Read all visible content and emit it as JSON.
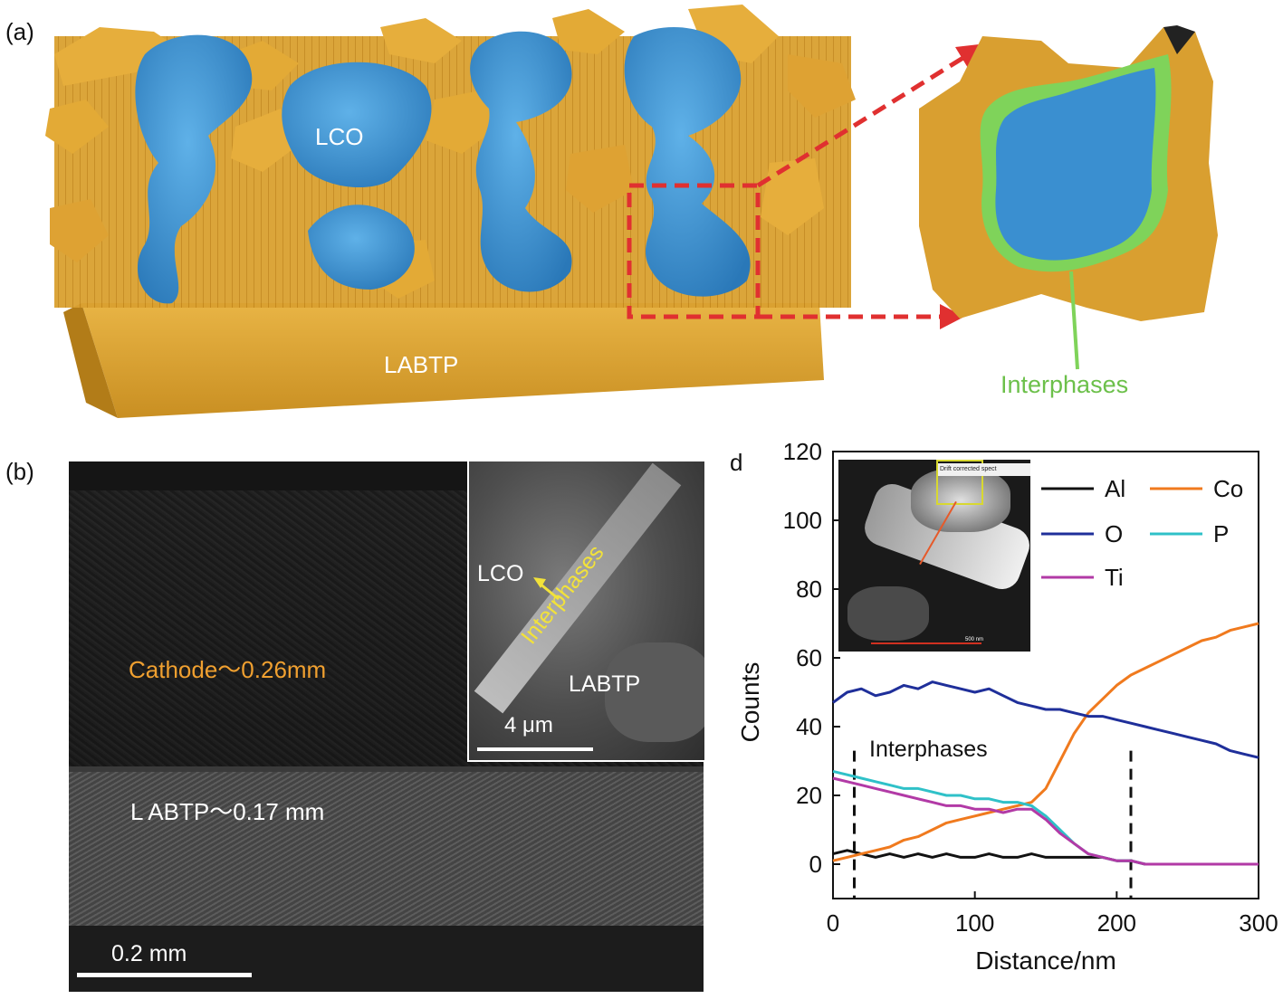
{
  "panel_a": {
    "letter": "(a)",
    "label_lco": "LCO",
    "label_labtp": "LABTP",
    "label_interphases": "Interphases",
    "colors": {
      "labtp": "#d9a030",
      "lco": "#3a8fd0",
      "interphase": "#7fd35a",
      "arrow": "#e03030"
    }
  },
  "panel_b": {
    "letter": "(b)",
    "label_cathode": "Cathode～0.26mm",
    "label_labtp": "L ABTP～0.17 mm",
    "scalebar": "0.2 mm",
    "inset": {
      "label_lco": "LCO",
      "label_interphases": "Interphases",
      "label_labtp": "LABTP",
      "scalebar": "4 μm"
    },
    "colors": {
      "cathode_label": "#f0a030",
      "interphase_label": "#f2e23a"
    }
  },
  "panel_d": {
    "letter": "d",
    "annotation": "Interphases",
    "inset_header": "Drift corrected spect",
    "inset_scalebar": "500 nm"
  },
  "chart_data": {
    "type": "line",
    "xlabel": "Distance/nm",
    "ylabel": "Counts",
    "xlim": [
      0,
      300
    ],
    "ylim": [
      -10,
      120
    ],
    "xticks": [
      0,
      100,
      200,
      300
    ],
    "yticks": [
      0,
      20,
      40,
      60,
      80,
      100,
      120
    ],
    "grid": false,
    "legend_position": "top-right",
    "reference_lines_x": [
      15,
      210
    ],
    "series": [
      {
        "name": "Al",
        "color": "#111111",
        "x": [
          0,
          10,
          20,
          30,
          40,
          50,
          60,
          70,
          80,
          90,
          100,
          110,
          120,
          130,
          140,
          150,
          160,
          170,
          180,
          190,
          200,
          210,
          220
        ],
        "y": [
          3,
          4,
          3,
          2,
          3,
          2,
          3,
          2,
          3,
          2,
          2,
          3,
          2,
          2,
          3,
          2,
          2,
          2,
          2,
          2,
          1,
          1,
          0
        ]
      },
      {
        "name": "Co",
        "color": "#f07a1e",
        "x": [
          0,
          10,
          20,
          30,
          40,
          50,
          60,
          70,
          80,
          90,
          100,
          110,
          120,
          130,
          140,
          150,
          160,
          170,
          180,
          190,
          200,
          210,
          220,
          230,
          240,
          250,
          260,
          270,
          280,
          290,
          300
        ],
        "y": [
          1,
          2,
          3,
          4,
          5,
          7,
          8,
          10,
          12,
          13,
          14,
          15,
          16,
          17,
          18,
          22,
          30,
          38,
          44,
          48,
          52,
          55,
          57,
          59,
          61,
          63,
          65,
          66,
          68,
          69,
          70
        ]
      },
      {
        "name": "O",
        "color": "#1f2f9a",
        "x": [
          0,
          10,
          20,
          30,
          40,
          50,
          60,
          70,
          80,
          90,
          100,
          110,
          120,
          130,
          140,
          150,
          160,
          170,
          180,
          190,
          200,
          210,
          220,
          230,
          240,
          250,
          260,
          270,
          280,
          290,
          300
        ],
        "y": [
          47,
          50,
          51,
          49,
          50,
          52,
          51,
          53,
          52,
          51,
          50,
          51,
          49,
          47,
          46,
          45,
          45,
          44,
          43,
          43,
          42,
          41,
          40,
          39,
          38,
          37,
          36,
          35,
          33,
          32,
          31
        ]
      },
      {
        "name": "P",
        "color": "#2fc1c8",
        "x": [
          0,
          10,
          20,
          30,
          40,
          50,
          60,
          70,
          80,
          90,
          100,
          110,
          120,
          130,
          140,
          150,
          160,
          170,
          180,
          190,
          200,
          210,
          220,
          230,
          240
        ],
        "y": [
          27,
          26,
          25,
          24,
          23,
          22,
          22,
          21,
          20,
          20,
          19,
          19,
          18,
          18,
          17,
          14,
          10,
          6,
          3,
          2,
          1,
          1,
          0,
          0,
          0
        ]
      },
      {
        "name": "Ti",
        "color": "#b23aa6",
        "x": [
          0,
          10,
          20,
          30,
          40,
          50,
          60,
          70,
          80,
          90,
          100,
          110,
          120,
          130,
          140,
          150,
          160,
          170,
          180,
          190,
          200,
          210,
          220,
          230,
          240,
          250,
          260,
          270,
          280,
          290,
          300
        ],
        "y": [
          25,
          24,
          23,
          22,
          21,
          20,
          19,
          18,
          17,
          17,
          16,
          16,
          15,
          16,
          16,
          13,
          9,
          6,
          3,
          2,
          1,
          1,
          0,
          0,
          0,
          0,
          0,
          0,
          0,
          0,
          0
        ]
      }
    ]
  }
}
